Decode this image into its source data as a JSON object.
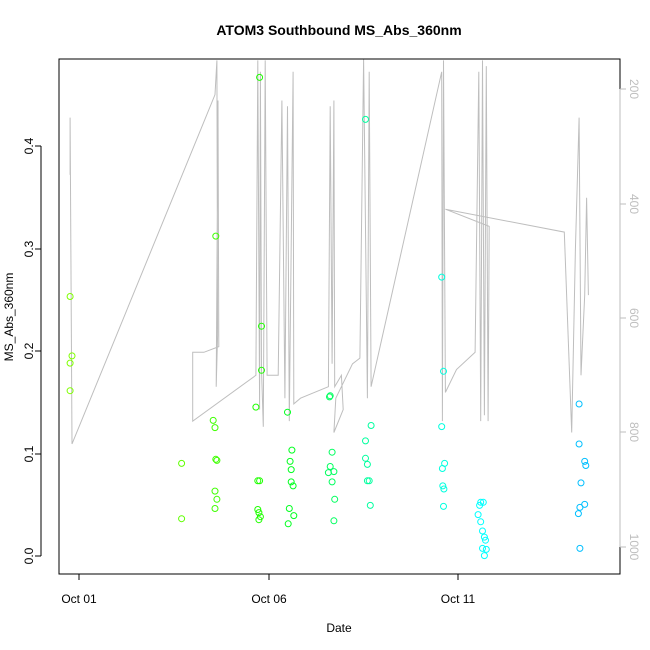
{
  "chart_data": {
    "type": "scatter",
    "title": "ATOM3 Southbound MS_Abs_360nm",
    "xlabel": "Date",
    "ylabel": "MS_Abs_360nm",
    "x_ticks": [
      {
        "day": 1,
        "label": "Oct 01"
      },
      {
        "day": 6,
        "label": "Oct 06"
      },
      {
        "day": 11,
        "label": "Oct 11"
      }
    ],
    "xlim": [
      0.7,
      15.8
    ],
    "ylim": [
      -0.018,
      0.485
    ],
    "y_ticks": [
      "0.0",
      "0.1",
      "0.2",
      "0.3",
      "0.4"
    ],
    "y2_ticks": [
      "200",
      "400",
      "600",
      "800",
      "1000"
    ],
    "y2lim": [
      1050,
      160
    ],
    "grid": false,
    "points": [
      {
        "x": 1.0,
        "y": 0.253,
        "color": "#7fff00"
      },
      {
        "x": 1.05,
        "y": 0.195,
        "color": "#7fff00"
      },
      {
        "x": 1.0,
        "y": 0.188,
        "color": "#7fff00"
      },
      {
        "x": 1.0,
        "y": 0.161,
        "color": "#7fff00"
      },
      {
        "x": 4.0,
        "y": 0.09,
        "color": "#5fff00"
      },
      {
        "x": 4.0,
        "y": 0.036,
        "color": "#5fff00"
      },
      {
        "x": 4.85,
        "y": 0.132,
        "color": "#3fff00"
      },
      {
        "x": 4.9,
        "y": 0.125,
        "color": "#3fff00"
      },
      {
        "x": 4.92,
        "y": 0.094,
        "color": "#3fff00"
      },
      {
        "x": 4.95,
        "y": 0.093,
        "color": "#3fff00"
      },
      {
        "x": 4.9,
        "y": 0.063,
        "color": "#3fff00"
      },
      {
        "x": 4.95,
        "y": 0.055,
        "color": "#3fff00"
      },
      {
        "x": 4.9,
        "y": 0.046,
        "color": "#3fff00"
      },
      {
        "x": 4.92,
        "y": 0.312,
        "color": "#3fff00"
      },
      {
        "x": 6.1,
        "y": 0.467,
        "color": "#1fff00"
      },
      {
        "x": 6.15,
        "y": 0.224,
        "color": "#1fff00"
      },
      {
        "x": 6.15,
        "y": 0.181,
        "color": "#1fff00"
      },
      {
        "x": 6.0,
        "y": 0.145,
        "color": "#1fff00"
      },
      {
        "x": 6.05,
        "y": 0.073,
        "color": "#1fff00"
      },
      {
        "x": 6.1,
        "y": 0.073,
        "color": "#1fff00"
      },
      {
        "x": 6.05,
        "y": 0.045,
        "color": "#1fff00"
      },
      {
        "x": 6.08,
        "y": 0.042,
        "color": "#1fff00"
      },
      {
        "x": 6.12,
        "y": 0.038,
        "color": "#1fff00"
      },
      {
        "x": 6.08,
        "y": 0.035,
        "color": "#1fff00"
      },
      {
        "x": 6.85,
        "y": 0.14,
        "color": "#00ff1f"
      },
      {
        "x": 6.97,
        "y": 0.103,
        "color": "#00ff1f"
      },
      {
        "x": 6.92,
        "y": 0.092,
        "color": "#00ff1f"
      },
      {
        "x": 6.95,
        "y": 0.084,
        "color": "#00ff1f"
      },
      {
        "x": 6.95,
        "y": 0.072,
        "color": "#00ff1f"
      },
      {
        "x": 7.0,
        "y": 0.068,
        "color": "#00ff1f"
      },
      {
        "x": 6.9,
        "y": 0.046,
        "color": "#00ff1f"
      },
      {
        "x": 7.02,
        "y": 0.039,
        "color": "#00ff1f"
      },
      {
        "x": 6.87,
        "y": 0.031,
        "color": "#00ff1f"
      },
      {
        "x": 8.0,
        "y": 0.156,
        "color": "#00ff5f"
      },
      {
        "x": 7.98,
        "y": 0.155,
        "color": "#00ff5f"
      },
      {
        "x": 8.05,
        "y": 0.101,
        "color": "#00ff5f"
      },
      {
        "x": 8.0,
        "y": 0.087,
        "color": "#00ff5f"
      },
      {
        "x": 7.95,
        "y": 0.081,
        "color": "#00ff5f"
      },
      {
        "x": 8.1,
        "y": 0.082,
        "color": "#00ff5f"
      },
      {
        "x": 8.05,
        "y": 0.072,
        "color": "#00ff5f"
      },
      {
        "x": 8.12,
        "y": 0.055,
        "color": "#00ff5f"
      },
      {
        "x": 8.1,
        "y": 0.034,
        "color": "#00ff5f"
      },
      {
        "x": 8.95,
        "y": 0.426,
        "color": "#00ff9f"
      },
      {
        "x": 9.1,
        "y": 0.127,
        "color": "#00ff9f"
      },
      {
        "x": 8.95,
        "y": 0.112,
        "color": "#00ff9f"
      },
      {
        "x": 8.95,
        "y": 0.095,
        "color": "#00ff9f"
      },
      {
        "x": 9.0,
        "y": 0.089,
        "color": "#00ff9f"
      },
      {
        "x": 9.0,
        "y": 0.073,
        "color": "#00ff9f"
      },
      {
        "x": 9.05,
        "y": 0.073,
        "color": "#00ff9f"
      },
      {
        "x": 9.08,
        "y": 0.049,
        "color": "#00ff9f"
      },
      {
        "x": 11.0,
        "y": 0.272,
        "color": "#00ffdf"
      },
      {
        "x": 11.05,
        "y": 0.18,
        "color": "#00ffdf"
      },
      {
        "x": 11.0,
        "y": 0.126,
        "color": "#00ffdf"
      },
      {
        "x": 11.08,
        "y": 0.09,
        "color": "#00ffdf"
      },
      {
        "x": 11.02,
        "y": 0.085,
        "color": "#00ffdf"
      },
      {
        "x": 11.03,
        "y": 0.068,
        "color": "#00ffdf"
      },
      {
        "x": 11.06,
        "y": 0.065,
        "color": "#00ffdf"
      },
      {
        "x": 11.05,
        "y": 0.048,
        "color": "#00ffdf"
      },
      {
        "x": 12.05,
        "y": 0.052,
        "color": "#00ffff"
      },
      {
        "x": 12.12,
        "y": 0.052,
        "color": "#00ffff"
      },
      {
        "x": 12.02,
        "y": 0.049,
        "color": "#00ffff"
      },
      {
        "x": 11.98,
        "y": 0.04,
        "color": "#00ffff"
      },
      {
        "x": 12.05,
        "y": 0.033,
        "color": "#00ffff"
      },
      {
        "x": 12.1,
        "y": 0.024,
        "color": "#00ffff"
      },
      {
        "x": 12.15,
        "y": 0.018,
        "color": "#00ffff"
      },
      {
        "x": 12.18,
        "y": 0.015,
        "color": "#00ffff"
      },
      {
        "x": 12.1,
        "y": 0.007,
        "color": "#00ffff"
      },
      {
        "x": 12.2,
        "y": 0.006,
        "color": "#00ffff"
      },
      {
        "x": 12.15,
        "y": 0.0,
        "color": "#00ffff"
      },
      {
        "x": 14.7,
        "y": 0.148,
        "color": "#00bfff"
      },
      {
        "x": 14.7,
        "y": 0.109,
        "color": "#00bfff"
      },
      {
        "x": 14.85,
        "y": 0.092,
        "color": "#00bfff"
      },
      {
        "x": 14.88,
        "y": 0.088,
        "color": "#00bfff"
      },
      {
        "x": 14.75,
        "y": 0.071,
        "color": "#00bfff"
      },
      {
        "x": 14.85,
        "y": 0.05,
        "color": "#00bfff"
      },
      {
        "x": 14.72,
        "y": 0.047,
        "color": "#00bfff"
      },
      {
        "x": 14.68,
        "y": 0.041,
        "color": "#00bfff"
      },
      {
        "x": 14.72,
        "y": 0.007,
        "color": "#00bfff"
      }
    ],
    "track_color": "#bebebe",
    "track": [
      [
        1.0,
        350
      ],
      [
        1.0,
        250
      ],
      [
        1.05,
        820
      ],
      [
        4.9,
        210
      ],
      [
        4.95,
        150
      ],
      [
        4.97,
        630
      ],
      [
        4.93,
        720
      ],
      [
        4.98,
        220
      ],
      [
        5.0,
        650
      ],
      [
        4.6,
        660
      ],
      [
        4.3,
        660
      ],
      [
        4.3,
        780
      ],
      [
        6.0,
        700
      ],
      [
        6.05,
        150
      ],
      [
        6.1,
        760
      ],
      [
        6.12,
        170
      ],
      [
        6.15,
        690
      ],
      [
        6.2,
        790
      ],
      [
        6.25,
        150
      ],
      [
        6.3,
        700
      ],
      [
        6.6,
        700
      ],
      [
        6.7,
        220
      ],
      [
        6.78,
        740
      ],
      [
        6.85,
        230
      ],
      [
        6.9,
        780
      ],
      [
        7.0,
        170
      ],
      [
        7.02,
        750
      ],
      [
        7.2,
        740
      ],
      [
        7.95,
        720
      ],
      [
        8.0,
        230
      ],
      [
        8.05,
        680
      ],
      [
        8.1,
        220
      ],
      [
        8.12,
        720
      ],
      [
        8.3,
        700
      ],
      [
        8.35,
        760
      ],
      [
        8.1,
        800
      ],
      [
        8.15,
        740
      ],
      [
        8.6,
        680
      ],
      [
        8.8,
        670
      ],
      [
        8.9,
        140
      ],
      [
        9.0,
        740
      ],
      [
        9.05,
        170
      ],
      [
        9.1,
        720
      ],
      [
        11.0,
        170
      ],
      [
        11.02,
        780
      ],
      [
        11.05,
        150
      ],
      [
        11.1,
        730
      ],
      [
        11.4,
        690
      ],
      [
        11.9,
        660
      ],
      [
        12.0,
        170
      ],
      [
        12.05,
        780
      ],
      [
        12.1,
        150
      ],
      [
        12.15,
        770
      ],
      [
        12.2,
        160
      ],
      [
        12.25,
        780
      ],
      [
        12.28,
        440
      ],
      [
        11.1,
        410
      ],
      [
        14.3,
        450
      ],
      [
        14.5,
        800
      ],
      [
        14.6,
        480
      ],
      [
        14.7,
        250
      ],
      [
        14.75,
        700
      ],
      [
        14.85,
        560
      ],
      [
        14.9,
        390
      ],
      [
        14.95,
        560
      ]
    ]
  }
}
